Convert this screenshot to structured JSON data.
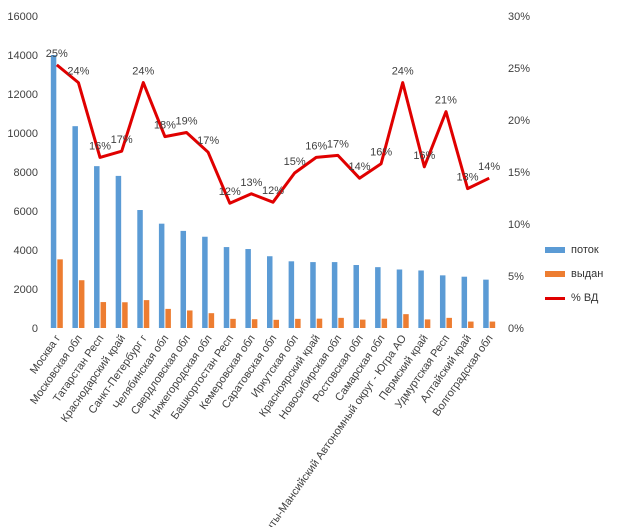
{
  "chart_data": {
    "type": "bar+line",
    "categories": [
      "Москва г",
      "Московская обл",
      "Татарстан Респ",
      "Краснодарский край",
      "Санкт-Петербург г",
      "Челябинская обл",
      "Свердловская обл",
      "Нижегородская обл",
      "Башкортостан Респ",
      "Кемеровская обл",
      "Саратовская обл",
      "Иркутская обл",
      "Красноярский край",
      "Новосибирская обл",
      "Ростовская обл",
      "Самарская обл",
      "Ханты-Мансийский Автономный округ - Югра АО",
      "Пермский край",
      "Удмуртская Респ",
      "Алтайский край",
      "Волгоградская обл"
    ],
    "series": [
      {
        "name": "поток",
        "type": "bar",
        "axis": "left",
        "color": "#5B9BD5",
        "values": [
          14000,
          10350,
          8300,
          7800,
          6050,
          5350,
          4980,
          4680,
          4150,
          4050,
          3680,
          3420,
          3380,
          3380,
          3230,
          3120,
          3000,
          2950,
          2700,
          2630,
          2480
        ]
      },
      {
        "name": "выдан",
        "type": "bar",
        "axis": "left",
        "color": "#ED7D31",
        "values": [
          3520,
          2450,
          1330,
          1320,
          1430,
          980,
          900,
          760,
          470,
          450,
          420,
          470,
          480,
          520,
          430,
          480,
          710,
          440,
          520,
          330,
          330
        ]
      },
      {
        "name": "% ВД",
        "type": "line",
        "axis": "right",
        "color": "#E00000",
        "values": [
          25.3,
          23.6,
          16.4,
          17.0,
          23.6,
          18.4,
          18.8,
          16.9,
          12.0,
          12.9,
          12.1,
          14.9,
          16.4,
          16.6,
          14.4,
          15.8,
          23.6,
          15.5,
          20.8,
          13.4,
          14.4
        ],
        "labels": [
          "25%",
          "24%",
          "16%",
          "17%",
          "24%",
          "18%",
          "19%",
          "17%",
          "12%",
          "13%",
          "12%",
          "15%",
          "16%",
          "17%",
          "14%",
          "16%",
          "24%",
          "16%",
          "21%",
          "13%",
          "14%"
        ]
      }
    ],
    "y_left": {
      "min": 0,
      "max": 16000,
      "ticks": [
        "0",
        "2000",
        "4000",
        "6000",
        "8000",
        "10000",
        "12000",
        "14000",
        "16000"
      ]
    },
    "y_right": {
      "min": 0,
      "max": 30,
      "ticks": [
        "0%",
        "5%",
        "10%",
        "15%",
        "20%",
        "25%",
        "30%"
      ]
    },
    "grid": false,
    "legend_position": "right"
  }
}
